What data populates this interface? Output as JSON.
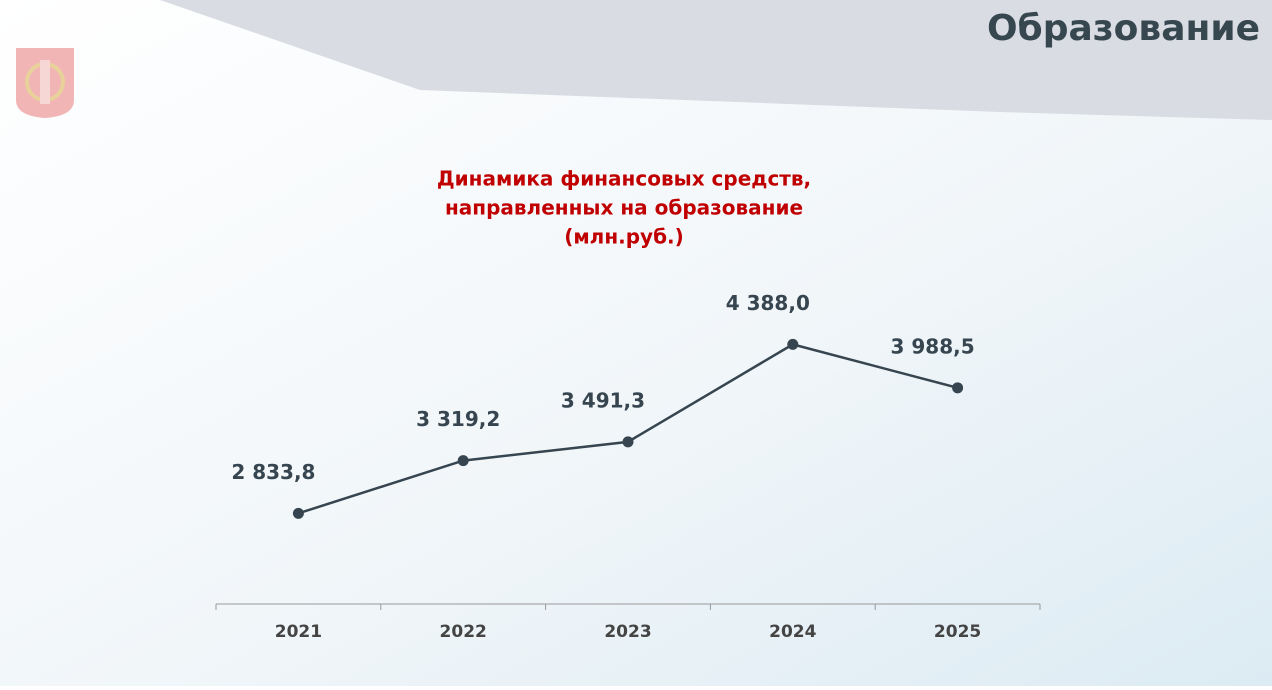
{
  "heading": "Образование",
  "chart_data": {
    "type": "line",
    "title": [
      "Динамика  финансовых средств,",
      "направленных на образование",
      "(млн.руб.)"
    ],
    "categories": [
      "2021",
      "2022",
      "2023",
      "2024",
      "2025"
    ],
    "values": [
      2833.8,
      3319.2,
      3491.3,
      4388.0,
      3988.5
    ],
    "value_labels": [
      "2 833,8",
      "3 319,2",
      "3 491,3",
      "4 388,0",
      "3 988,5"
    ],
    "color": "#36454f",
    "ylim": [
      2000,
      5900
    ]
  }
}
